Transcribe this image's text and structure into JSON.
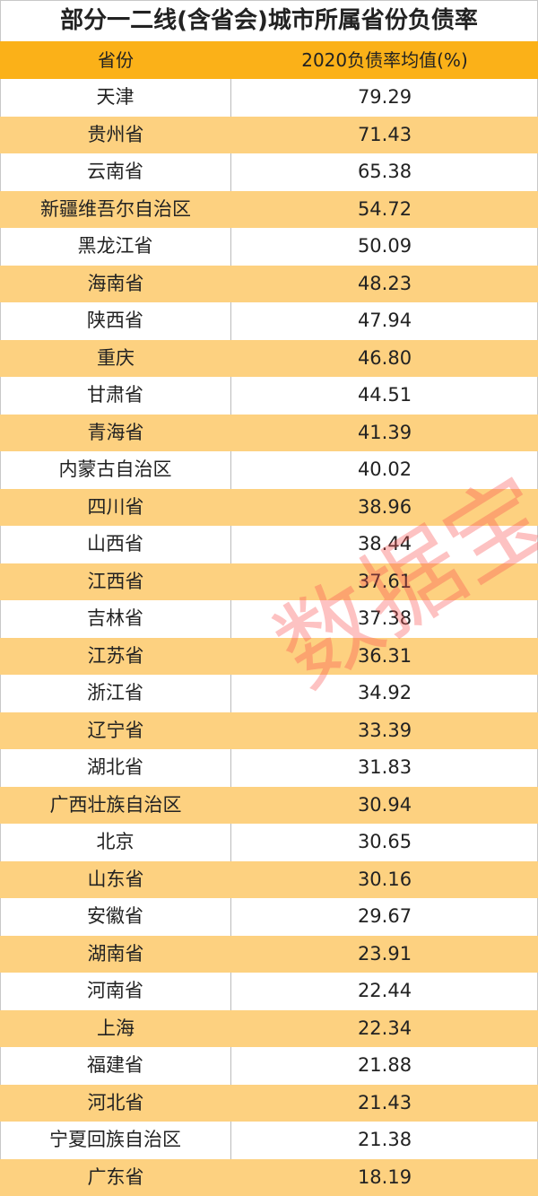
{
  "title": "部分一二线(含省会)城市所属省份负债率",
  "header": {
    "col1": "省份",
    "col2": "2020负债率均值(%)"
  },
  "colors": {
    "header_bg": "#fbb118",
    "alt_row_bg": "#fdd180",
    "watermark": "#fa5050"
  },
  "watermark": "数据宝",
  "rows": [
    {
      "province": "天津",
      "value": "79.29"
    },
    {
      "province": "贵州省",
      "value": "71.43"
    },
    {
      "province": "云南省",
      "value": "65.38"
    },
    {
      "province": "新疆维吾尔自治区",
      "value": "54.72"
    },
    {
      "province": "黑龙江省",
      "value": "50.09"
    },
    {
      "province": "海南省",
      "value": "48.23"
    },
    {
      "province": "陕西省",
      "value": "47.94"
    },
    {
      "province": "重庆",
      "value": "46.80"
    },
    {
      "province": "甘肃省",
      "value": "44.51"
    },
    {
      "province": "青海省",
      "value": "41.39"
    },
    {
      "province": "内蒙古自治区",
      "value": "40.02"
    },
    {
      "province": "四川省",
      "value": "38.96"
    },
    {
      "province": "山西省",
      "value": "38.44"
    },
    {
      "province": "江西省",
      "value": "37.61"
    },
    {
      "province": "吉林省",
      "value": "37.38"
    },
    {
      "province": "江苏省",
      "value": "36.31"
    },
    {
      "province": "浙江省",
      "value": "34.92"
    },
    {
      "province": "辽宁省",
      "value": "33.39"
    },
    {
      "province": "湖北省",
      "value": "31.83"
    },
    {
      "province": "广西壮族自治区",
      "value": "30.94"
    },
    {
      "province": "北京",
      "value": "30.65"
    },
    {
      "province": "山东省",
      "value": "30.16"
    },
    {
      "province": "安徽省",
      "value": "29.67"
    },
    {
      "province": "湖南省",
      "value": "23.91"
    },
    {
      "province": "河南省",
      "value": "22.44"
    },
    {
      "province": "上海",
      "value": "22.34"
    },
    {
      "province": "福建省",
      "value": "21.88"
    },
    {
      "province": "河北省",
      "value": "21.43"
    },
    {
      "province": "宁夏回族自治区",
      "value": "21.38"
    },
    {
      "province": "广东省",
      "value": "18.19"
    }
  ]
}
